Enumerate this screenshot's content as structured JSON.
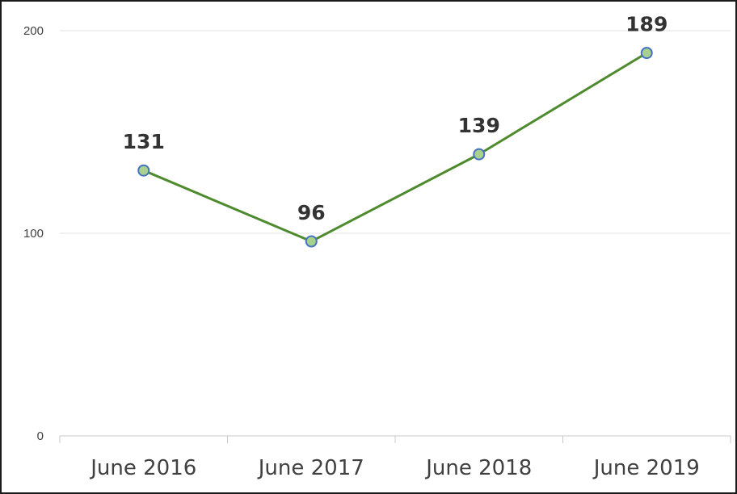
{
  "chart_data": {
    "type": "line",
    "categories": [
      "June 2016",
      "June 2017",
      "June 2018",
      "June 2019"
    ],
    "series": [
      {
        "values": [
          131,
          96,
          139,
          189
        ]
      }
    ],
    "ylim": [
      0,
      200
    ],
    "yticks": [
      0,
      100,
      200
    ],
    "ytick_labels": [
      "0",
      "100",
      "200"
    ],
    "data_labels": [
      "131",
      "96",
      "139",
      "189"
    ],
    "grid": true,
    "legend": "none",
    "colors": {
      "line": "#4e8a2e",
      "marker_fill": "#a9d18e",
      "marker_stroke": "#4472c4",
      "grid": "#e0e0e0",
      "axis": "#c8c8c8",
      "text": "#404040"
    }
  }
}
